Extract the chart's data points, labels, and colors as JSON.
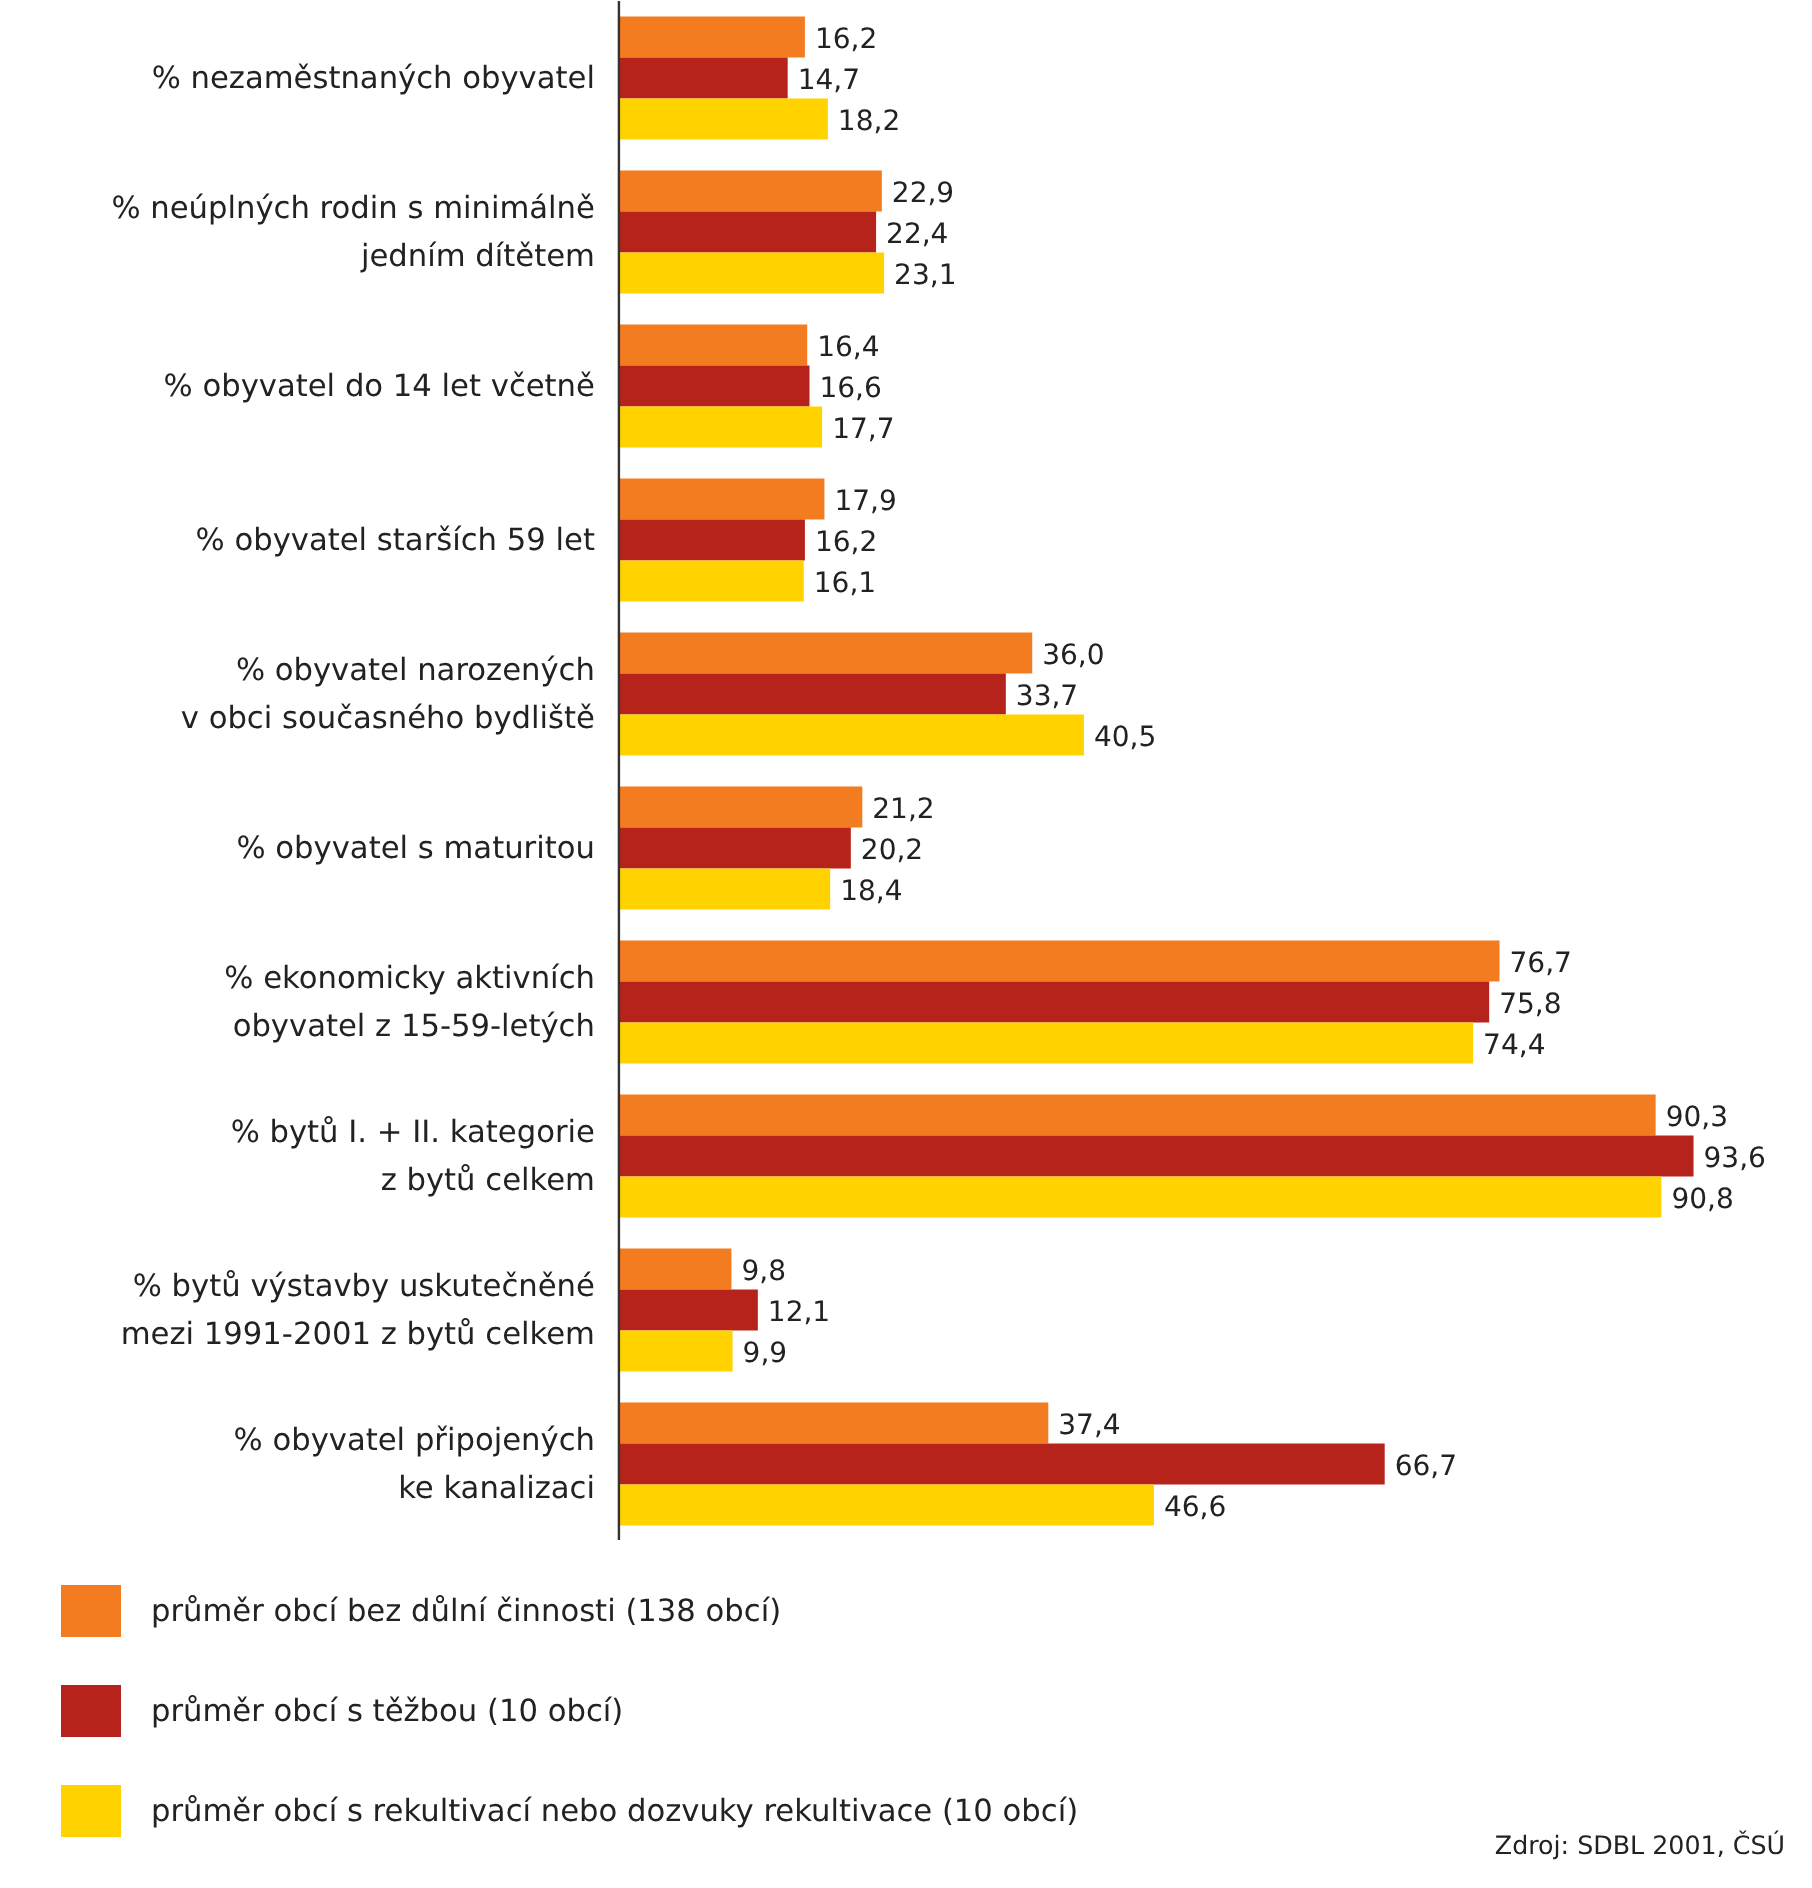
{
  "chart_data": {
    "type": "bar",
    "orientation": "horizontal",
    "categories": [
      "% nezaměstnaných obyvatel",
      "% neúplných rodin s minimálně\njedním dítětem",
      "% obyvatel do 14 let včetně",
      "% obyvatel starších 59 let",
      "% obyvatel narozených\nv obci současného bydliště",
      "% obyvatel s maturitou",
      "% ekonomicky aktivních\nobyvatel z 15-59-letých",
      "% bytů I. + II. kategorie\nz bytů celkem",
      "% bytů výstavby uskutečněné\nmezi 1991-2001 z bytů celkem",
      "% obyvatel připojených\nke kanalizaci"
    ],
    "series": [
      {
        "name": "průměr obcí bez důlní činnosti (138 obcí)",
        "color": "#f37b20",
        "values": [
          16.2,
          22.9,
          16.4,
          17.9,
          36.0,
          21.2,
          76.7,
          90.3,
          9.8,
          37.4
        ],
        "value_labels": [
          "16,2",
          "22,9",
          "16,4",
          "17,9",
          "36,0",
          "21,2",
          "76,7",
          "90,3",
          "9,8",
          "37,4"
        ]
      },
      {
        "name": "průměr obcí s těžbou (10 obcí)",
        "color": "#b5231a",
        "values": [
          14.7,
          22.4,
          16.6,
          16.2,
          33.7,
          20.2,
          75.8,
          93.6,
          12.1,
          66.7
        ],
        "value_labels": [
          "14,7",
          "22,4",
          "16,6",
          "16,2",
          "33,7",
          "20,2",
          "75,8",
          "93,6",
          "12,1",
          "66,7"
        ]
      },
      {
        "name": "průměr obcí s rekultivací nebo dozvuky rekultivace (10 obcí)",
        "color": "#ffd200",
        "values": [
          18.2,
          23.1,
          17.7,
          16.1,
          40.5,
          18.4,
          74.4,
          90.8,
          9.9,
          46.6
        ],
        "value_labels": [
          "18,2",
          "23,1",
          "17,7",
          "16,1",
          "40,5",
          "18,4",
          "74,4",
          "90,8",
          "9,9",
          "46,6"
        ]
      }
    ],
    "legend": "bottom",
    "tick_labels": "y",
    "annotations": [
      "Zdroj: SDBL 2001, ČSÚ"
    ]
  }
}
